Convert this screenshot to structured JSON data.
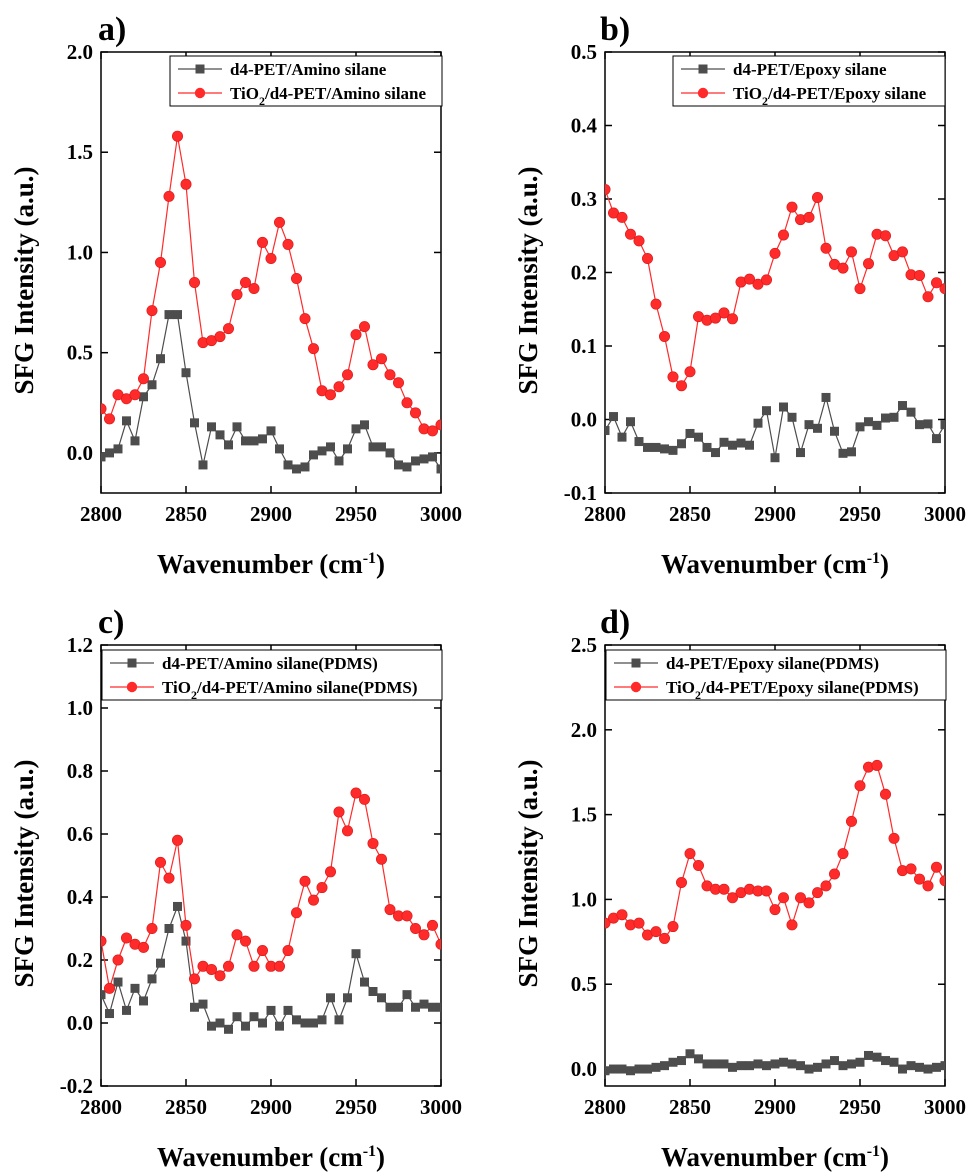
{
  "panels": [
    {
      "letter": "a)",
      "chart_data": {
        "type": "line",
        "xlabel": "Wavenumber (cm-1)",
        "ylabel": "SFG Intensity (a.u.)",
        "xlim": [
          2800,
          3000
        ],
        "ylim": [
          -0.2,
          2.0
        ],
        "xticks": [
          2800,
          2850,
          2900,
          2950,
          3000
        ],
        "yticks": [
          0.0,
          0.5,
          1.0,
          1.5,
          2.0
        ],
        "ytick_labels": [
          "0.0",
          "0.5",
          "1.0",
          "1.5",
          "2.0"
        ],
        "legend_position": "top-right",
        "grid": false,
        "x": [
          2800,
          2805,
          2810,
          2815,
          2820,
          2825,
          2830,
          2835,
          2840,
          2845,
          2850,
          2855,
          2860,
          2865,
          2870,
          2875,
          2880,
          2885,
          2890,
          2895,
          2900,
          2905,
          2910,
          2915,
          2920,
          2925,
          2930,
          2935,
          2940,
          2945,
          2950,
          2955,
          2960,
          2965,
          2970,
          2975,
          2980,
          2985,
          2990,
          2995,
          3000
        ],
        "series": [
          {
            "name": "d4-PET/Amino silane",
            "color": "#4d4d4d",
            "marker": "square",
            "values": [
              -0.02,
              0.0,
              0.02,
              0.16,
              0.06,
              0.28,
              0.34,
              0.47,
              0.69,
              0.69,
              0.4,
              0.15,
              -0.06,
              0.13,
              0.09,
              0.04,
              0.13,
              0.06,
              0.06,
              0.07,
              0.11,
              0.02,
              -0.06,
              -0.08,
              -0.07,
              -0.01,
              0.01,
              0.03,
              -0.04,
              0.02,
              0.12,
              0.14,
              0.03,
              0.03,
              0.0,
              -0.06,
              -0.07,
              -0.04,
              -0.03,
              -0.02,
              -0.08
            ]
          },
          {
            "name": "TiO2/d4-PET/Amino silane",
            "color": "#ff2a2a",
            "marker": "circle",
            "values": [
              0.22,
              0.17,
              0.29,
              0.27,
              0.29,
              0.37,
              0.71,
              0.95,
              1.28,
              1.58,
              1.34,
              0.85,
              0.55,
              0.56,
              0.58,
              0.62,
              0.79,
              0.85,
              0.82,
              1.05,
              0.97,
              1.15,
              1.04,
              0.87,
              0.67,
              0.52,
              0.31,
              0.29,
              0.33,
              0.39,
              0.59,
              0.63,
              0.44,
              0.47,
              0.39,
              0.35,
              0.25,
              0.2,
              0.12,
              0.11,
              0.14
            ]
          }
        ]
      }
    },
    {
      "letter": "b)",
      "chart_data": {
        "type": "line",
        "xlabel": "Wavenumber (cm-1)",
        "ylabel": "SFG Intensity (a.u.)",
        "xlim": [
          2800,
          3000
        ],
        "ylim": [
          -0.1,
          0.5
        ],
        "xticks": [
          2800,
          2850,
          2900,
          2950,
          3000
        ],
        "yticks": [
          -0.1,
          0.0,
          0.1,
          0.2,
          0.3,
          0.4,
          0.5
        ],
        "ytick_labels": [
          "-0.1",
          "0.0",
          "0.1",
          "0.2",
          "0.3",
          "0.4",
          "0.5"
        ],
        "legend_position": "top-right",
        "grid": false,
        "x": [
          2800,
          2805,
          2810,
          2815,
          2820,
          2825,
          2830,
          2835,
          2840,
          2845,
          2850,
          2855,
          2860,
          2865,
          2870,
          2875,
          2880,
          2885,
          2890,
          2895,
          2900,
          2905,
          2910,
          2915,
          2920,
          2925,
          2930,
          2935,
          2940,
          2945,
          2950,
          2955,
          2960,
          2965,
          2970,
          2975,
          2980,
          2985,
          2990,
          2995,
          3000
        ],
        "series": [
          {
            "name": "d4-PET/Epoxy silane",
            "color": "#4d4d4d",
            "marker": "square",
            "values": [
              -0.015,
              0.004,
              -0.024,
              -0.003,
              -0.03,
              -0.038,
              -0.038,
              -0.04,
              -0.042,
              -0.033,
              -0.019,
              -0.024,
              -0.038,
              -0.045,
              -0.031,
              -0.035,
              -0.032,
              -0.035,
              -0.005,
              0.012,
              -0.052,
              0.017,
              0.003,
              -0.045,
              -0.007,
              -0.012,
              0.03,
              -0.016,
              -0.046,
              -0.044,
              -0.01,
              -0.003,
              -0.008,
              0.002,
              0.003,
              0.019,
              0.01,
              -0.007,
              -0.006,
              -0.026,
              -0.007
            ]
          },
          {
            "name": "TiO2/d4-PET/Epoxy silane",
            "color": "#ff2a2a",
            "marker": "circle",
            "values": [
              0.313,
              0.281,
              0.275,
              0.252,
              0.243,
              0.219,
              0.157,
              0.113,
              0.058,
              0.046,
              0.065,
              0.14,
              0.135,
              0.138,
              0.145,
              0.137,
              0.187,
              0.191,
              0.184,
              0.19,
              0.226,
              0.251,
              0.289,
              0.272,
              0.275,
              0.302,
              0.233,
              0.211,
              0.206,
              0.228,
              0.178,
              0.212,
              0.252,
              0.25,
              0.223,
              0.228,
              0.197,
              0.196,
              0.167,
              0.186,
              0.178
            ]
          }
        ]
      }
    },
    {
      "letter": "c)",
      "chart_data": {
        "type": "line",
        "xlabel": "Wavenumber (cm-1)",
        "ylabel": "SFG Intensity (a.u.)",
        "xlim": [
          2800,
          3000
        ],
        "ylim": [
          -0.2,
          1.2
        ],
        "xticks": [
          2800,
          2850,
          2900,
          2950,
          3000
        ],
        "yticks": [
          -0.2,
          0.0,
          0.2,
          0.4,
          0.6,
          0.8,
          1.0,
          1.2
        ],
        "ytick_labels": [
          "-0.2",
          "0.0",
          "0.2",
          "0.4",
          "0.6",
          "0.8",
          "1.0",
          "1.2"
        ],
        "legend_position": "top-left",
        "grid": false,
        "x": [
          2800,
          2805,
          2810,
          2815,
          2820,
          2825,
          2830,
          2835,
          2840,
          2845,
          2850,
          2855,
          2860,
          2865,
          2870,
          2875,
          2880,
          2885,
          2890,
          2895,
          2900,
          2905,
          2910,
          2915,
          2920,
          2925,
          2930,
          2935,
          2940,
          2945,
          2950,
          2955,
          2960,
          2965,
          2970,
          2975,
          2980,
          2985,
          2990,
          2995,
          3000
        ],
        "series": [
          {
            "name": "d4-PET/Amino silane(PDMS)",
            "color": "#4d4d4d",
            "marker": "square",
            "values": [
              0.09,
              0.03,
              0.13,
              0.04,
              0.11,
              0.07,
              0.14,
              0.19,
              0.3,
              0.37,
              0.26,
              0.05,
              0.06,
              -0.01,
              0.0,
              -0.02,
              0.02,
              -0.01,
              0.02,
              0.0,
              0.04,
              -0.01,
              0.04,
              0.01,
              0.0,
              0.0,
              0.01,
              0.08,
              0.01,
              0.08,
              0.22,
              0.13,
              0.1,
              0.08,
              0.05,
              0.05,
              0.09,
              0.05,
              0.06,
              0.05,
              0.05
            ]
          },
          {
            "name": "TiO2/d4-PET/Amino silane(PDMS)",
            "color": "#ff2a2a",
            "marker": "circle",
            "values": [
              0.26,
              0.11,
              0.2,
              0.27,
              0.25,
              0.24,
              0.3,
              0.51,
              0.46,
              0.58,
              0.31,
              0.14,
              0.18,
              0.17,
              0.15,
              0.18,
              0.28,
              0.26,
              0.18,
              0.23,
              0.18,
              0.18,
              0.23,
              0.35,
              0.45,
              0.39,
              0.43,
              0.48,
              0.67,
              0.61,
              0.73,
              0.71,
              0.57,
              0.52,
              0.36,
              0.34,
              0.34,
              0.3,
              0.28,
              0.31,
              0.25
            ]
          }
        ]
      }
    },
    {
      "letter": "d)",
      "chart_data": {
        "type": "line",
        "xlabel": "Wavenumber (cm-1)",
        "ylabel": "SFG Intensity (a.u.)",
        "xlim": [
          2800,
          3000
        ],
        "ylim": [
          -0.1,
          2.5
        ],
        "xticks": [
          2800,
          2850,
          2900,
          2950,
          3000
        ],
        "yticks": [
          0.0,
          0.5,
          1.0,
          1.5,
          2.0,
          2.5
        ],
        "ytick_labels": [
          "0.0",
          "0.5",
          "1.0",
          "1.5",
          "2.0",
          "2.5"
        ],
        "legend_position": "top-left",
        "grid": false,
        "x": [
          2800,
          2805,
          2810,
          2815,
          2820,
          2825,
          2830,
          2835,
          2840,
          2845,
          2850,
          2855,
          2860,
          2865,
          2870,
          2875,
          2880,
          2885,
          2890,
          2895,
          2900,
          2905,
          2910,
          2915,
          2920,
          2925,
          2930,
          2935,
          2940,
          2945,
          2950,
          2955,
          2960,
          2965,
          2970,
          2975,
          2980,
          2985,
          2990,
          2995,
          3000
        ],
        "series": [
          {
            "name": "d4-PET/Epoxy silane(PDMS)",
            "color": "#4d4d4d",
            "marker": "square",
            "values": [
              -0.01,
              0.0,
              0.0,
              -0.01,
              0.0,
              0.0,
              0.01,
              0.02,
              0.04,
              0.05,
              0.09,
              0.06,
              0.03,
              0.03,
              0.03,
              0.01,
              0.02,
              0.02,
              0.03,
              0.02,
              0.03,
              0.04,
              0.03,
              0.02,
              0.0,
              0.01,
              0.03,
              0.05,
              0.02,
              0.03,
              0.04,
              0.08,
              0.07,
              0.05,
              0.04,
              0.0,
              0.02,
              0.01,
              0.0,
              0.01,
              0.02
            ]
          },
          {
            "name": "TiO2/d4-PET/Epoxy silane(PDMS)",
            "color": "#ff2a2a",
            "marker": "circle",
            "values": [
              0.86,
              0.89,
              0.91,
              0.85,
              0.86,
              0.79,
              0.81,
              0.77,
              0.84,
              1.1,
              1.27,
              1.2,
              1.08,
              1.06,
              1.06,
              1.01,
              1.04,
              1.06,
              1.05,
              1.05,
              0.94,
              1.01,
              0.85,
              1.01,
              0.98,
              1.04,
              1.08,
              1.15,
              1.27,
              1.46,
              1.67,
              1.78,
              1.79,
              1.62,
              1.36,
              1.17,
              1.18,
              1.12,
              1.08,
              1.19,
              1.11
            ]
          }
        ]
      }
    }
  ]
}
